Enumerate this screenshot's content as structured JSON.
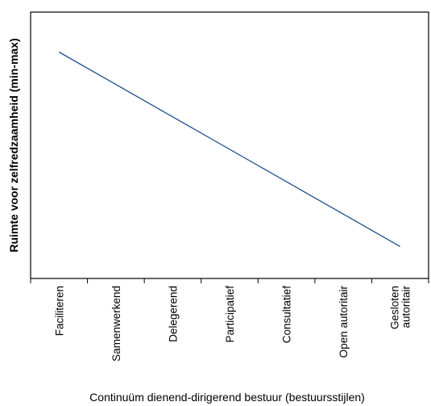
{
  "chart_data": {
    "type": "line",
    "title": "",
    "xlabel": "Continuüm dienend-dirigerend bestuur (bestuursstijlen)",
    "ylabel": "Ruimte voor zelfredzaamheid (min-max)",
    "categories": [
      [
        "Faciliteren"
      ],
      [
        "Samenwerkend"
      ],
      [
        "Delegerend"
      ],
      [
        "Participatief"
      ],
      [
        "Consultatief"
      ],
      [
        "Open autoritair"
      ],
      [
        "Gesloten",
        "autoritair"
      ]
    ],
    "series": [
      {
        "x_start": 0,
        "x_end": 6,
        "y_start": 0.85,
        "y_end": 0.12
      }
    ],
    "ylim": [
      0,
      1
    ],
    "y_ticks_shown": false,
    "grid": false,
    "line_color": "#1f4e8c"
  }
}
